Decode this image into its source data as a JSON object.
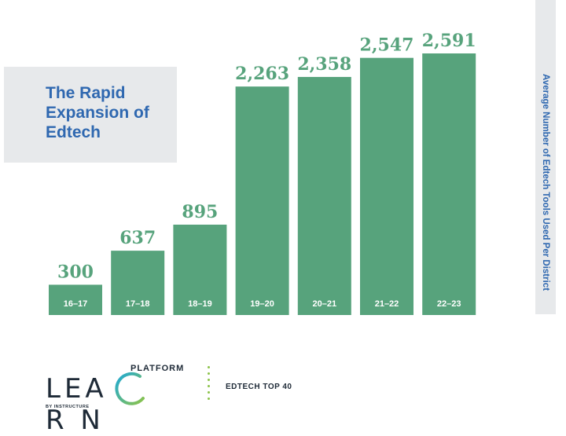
{
  "chart_data": {
    "type": "bar",
    "title": "The Rapid Expansion of Edtech",
    "ylabel": "Average Number of Edtech Tools Used Per District",
    "categories": [
      "16–17",
      "17–18",
      "18–19",
      "19–20",
      "20–21",
      "21–22",
      "22–23"
    ],
    "values": [
      300,
      637,
      895,
      2263,
      2358,
      2547,
      2591
    ],
    "value_labels": [
      "300",
      "637",
      "895",
      "2,263",
      "2,358",
      "2,547",
      "2,591"
    ],
    "ylim": [
      0,
      2591
    ],
    "grid": false,
    "bar_color": "#57a37c"
  },
  "logo": {
    "wordmark": "LEA R N",
    "platform": "PLATFORM",
    "byline": "BY INSTRUCTURE"
  },
  "footer": {
    "tag": "EDTECH TOP 40"
  }
}
